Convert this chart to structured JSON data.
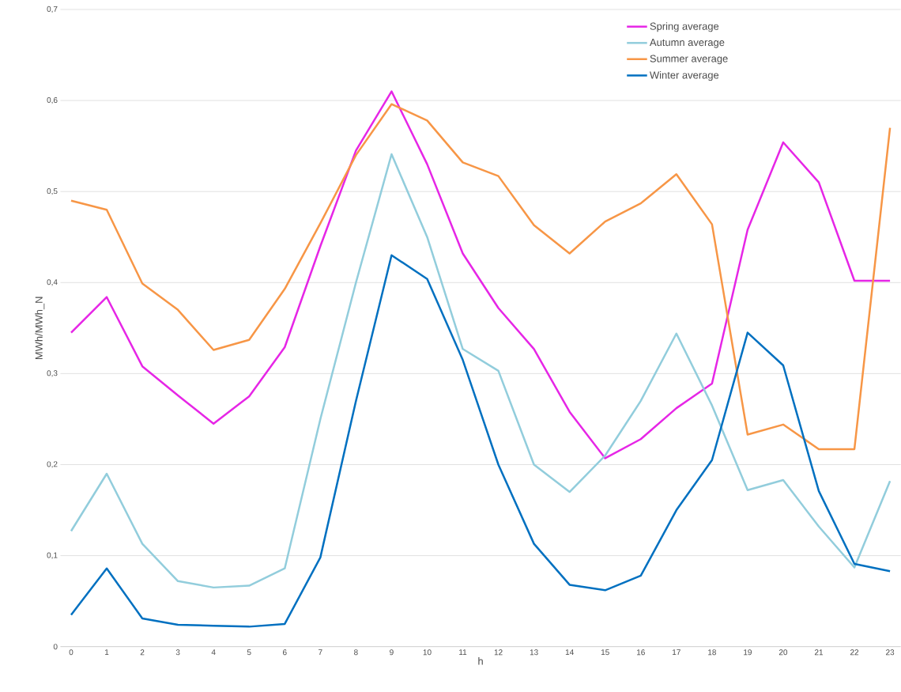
{
  "chart_data": {
    "type": "line",
    "xlabel": "h",
    "ylabel": "MWh/MWh_N",
    "categories": [
      "0",
      "1",
      "2",
      "3",
      "4",
      "5",
      "6",
      "7",
      "8",
      "9",
      "10",
      "11",
      "12",
      "13",
      "14",
      "15",
      "16",
      "17",
      "18",
      "19",
      "20",
      "21",
      "22",
      "23"
    ],
    "ylim": [
      0,
      0.7
    ],
    "yticks": [
      0,
      {
        "value": 0.1,
        "label": "0,1"
      },
      {
        "value": 0.2,
        "label": "0,2"
      },
      {
        "value": 0.3,
        "label": "0,3"
      },
      {
        "value": 0.4,
        "label": "0,4"
      },
      {
        "value": 0.5,
        "label": "0,5"
      },
      {
        "value": 0.6,
        "label": "0,6"
      },
      {
        "value": 0.7,
        "label": "0,7"
      }
    ],
    "grid": "y",
    "legend": "top right",
    "marker": "none",
    "line_style": "solid",
    "series": [
      {
        "name": "Spring average",
        "color": "#e626e6",
        "values": [
          0.345,
          0.384,
          0.308,
          0.276,
          0.245,
          0.275,
          0.329,
          0.44,
          0.545,
          0.61,
          0.53,
          0.432,
          0.372,
          0.327,
          0.258,
          0.207,
          0.228,
          0.262,
          0.289,
          0.458,
          0.554,
          0.51,
          0.402,
          0.402
        ]
      },
      {
        "name": "Autumn average",
        "color": "#92cddc",
        "values": [
          0.127,
          0.19,
          0.113,
          0.072,
          0.065,
          0.067,
          0.086,
          0.25,
          0.4,
          0.541,
          0.45,
          0.327,
          0.303,
          0.2,
          0.17,
          0.21,
          0.27,
          0.344,
          0.265,
          0.172,
          0.183,
          0.132,
          0.087,
          0.182
        ]
      },
      {
        "name": "Summer average",
        "color": "#f79646",
        "values": [
          0.49,
          0.48,
          0.399,
          0.37,
          0.326,
          0.337,
          0.393,
          0.465,
          0.54,
          0.596,
          0.578,
          0.532,
          0.517,
          0.463,
          0.432,
          0.467,
          0.487,
          0.519,
          0.464,
          0.233,
          0.244,
          0.217,
          0.217,
          0.57
        ]
      },
      {
        "name": "Winter average",
        "color": "#0070c0",
        "values": [
          0.035,
          0.086,
          0.031,
          0.024,
          0.023,
          0.022,
          0.025,
          0.098,
          0.27,
          0.43,
          0.404,
          0.315,
          0.2,
          0.113,
          0.068,
          0.062,
          0.078,
          0.15,
          0.205,
          0.345,
          0.309,
          0.171,
          0.091,
          0.083
        ]
      }
    ]
  }
}
